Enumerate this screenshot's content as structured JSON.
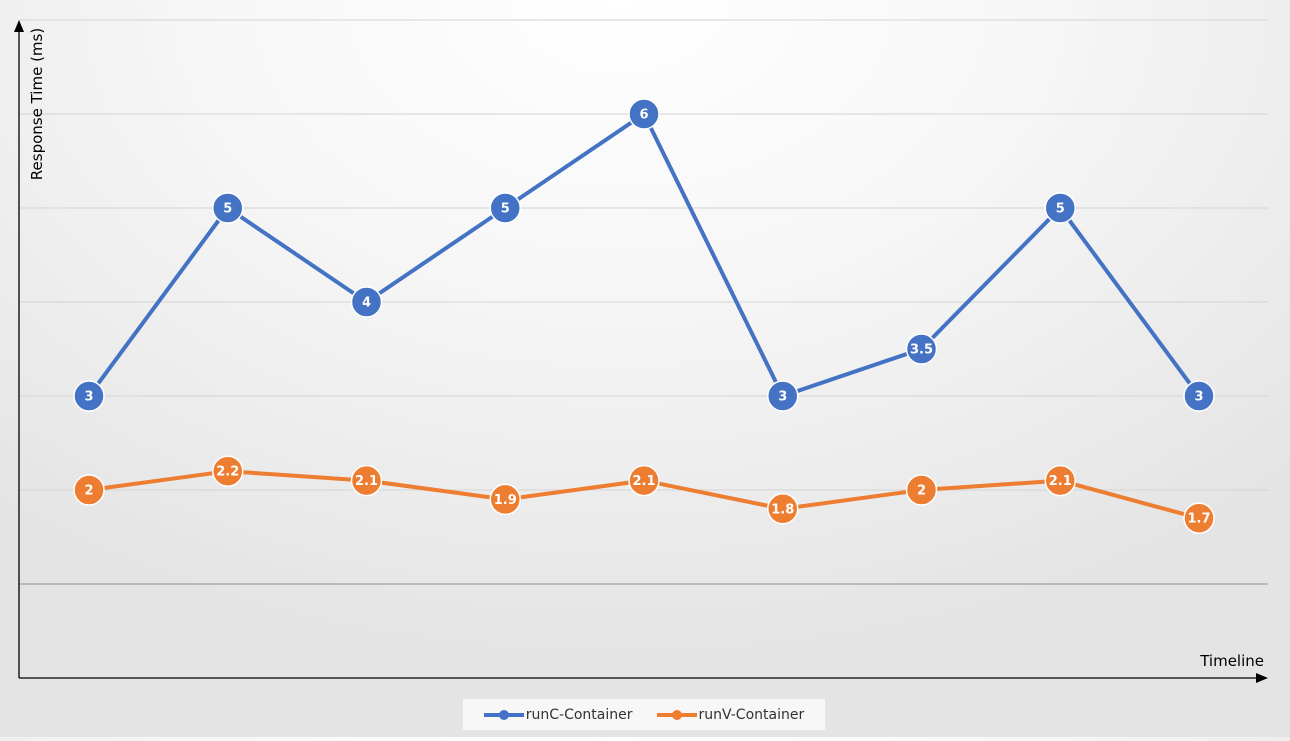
{
  "chart_data": {
    "type": "line",
    "title": "",
    "xlabel": "Timeline",
    "ylabel": "Response Time (ms)",
    "ylim": [
      0,
      7
    ],
    "grid": true,
    "legend_position": "bottom",
    "categories": [
      "",
      "",
      "",
      "",
      "",
      "",
      "",
      "",
      ""
    ],
    "series": [
      {
        "name": "runC-Container",
        "color": "#4472c4",
        "values": [
          3,
          5,
          4,
          5,
          6,
          3,
          3.5,
          5,
          3
        ],
        "labels": [
          "3",
          "5",
          "4",
          "5",
          "6",
          "3",
          "3.5",
          "5",
          "3"
        ]
      },
      {
        "name": "runV-Container",
        "color": "#ed7d31",
        "values": [
          2,
          2.2,
          2.1,
          1.9,
          2.1,
          1.8,
          2,
          2.1,
          1.7
        ],
        "labels": [
          "2",
          "2.2",
          "2.1",
          "1.9",
          "2.1",
          "1.8",
          "2",
          "2.1",
          "1.7"
        ]
      }
    ]
  }
}
